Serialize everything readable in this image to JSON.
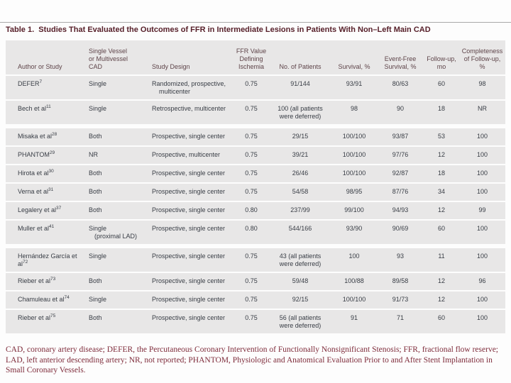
{
  "title": "Table 1.  Studies That Evaluated the Outcomes of FFR in Intermediate Lesions in Patients With Non–Left Main CAD",
  "table": {
    "columns": [
      "Author or Study",
      "Single Vessel\nor Multivessel\nCAD",
      "Study Design",
      "FFR Value\nDefining\nIschemia",
      "No. of Patients",
      "Survival, %",
      "Event-Free\nSurvival, %",
      "Follow-up,\nmo",
      "Completeness\nof Follow-up, %"
    ],
    "rows": [
      {
        "author": "DEFER",
        "sup": "7",
        "cad": "Single",
        "design": "Randomized, prospective,\nmulticenter",
        "ffr": "0.75",
        "patients": "91/144",
        "survival": "93/91",
        "event_free": "80/63",
        "followup": "60",
        "completeness": "98"
      },
      {
        "author": "Bech et al",
        "sup": "11",
        "cad": "Single",
        "design": "Retrospective, multicenter",
        "ffr": "0.75",
        "patients": "100 (all patients\nwere deferred)",
        "survival": "98",
        "event_free": "90",
        "followup": "18",
        "completeness": "NR"
      },
      {
        "author": "Misaka et al",
        "sup": "28",
        "cad": "Both",
        "design": "Prospective, single center",
        "ffr": "0.75",
        "patients": "29/15",
        "survival": "100/100",
        "event_free": "93/87",
        "followup": "53",
        "completeness": "100"
      },
      {
        "author": "PHANTOM",
        "sup": "29",
        "cad": "NR",
        "design": "Prospective, multicenter",
        "ffr": "0.75",
        "patients": "39/21",
        "survival": "100/100",
        "event_free": "97/76",
        "followup": "12",
        "completeness": "100"
      },
      {
        "author": "Hirota et al",
        "sup": "30",
        "cad": "Both",
        "design": "Prospective, single center",
        "ffr": "0.75",
        "patients": "26/46",
        "survival": "100/100",
        "event_free": "92/87",
        "followup": "18",
        "completeness": "100"
      },
      {
        "author": "Verna et al",
        "sup": "31",
        "cad": "Both",
        "design": "Prospective, single center",
        "ffr": "0.75",
        "patients": "54/58",
        "survival": "98/95",
        "event_free": "87/76",
        "followup": "34",
        "completeness": "100"
      },
      {
        "author": "Legalery et al",
        "sup": "37",
        "cad": "Both",
        "design": "Prospective, single center",
        "ffr": "0.80",
        "patients": "237/99",
        "survival": "99/100",
        "event_free": "94/93",
        "followup": "12",
        "completeness": "99"
      },
      {
        "author": "Muller et al",
        "sup": "41",
        "cad": "Single\n(proximal LAD)",
        "design": "Prospective, single center",
        "ffr": "0.80",
        "patients": "544/166",
        "survival": "93/90",
        "event_free": "90/69",
        "followup": "60",
        "completeness": "100"
      },
      {
        "author": "Hernández García et al",
        "sup": "72",
        "cad": "Single",
        "design": "Prospective, single center",
        "ffr": "0.75",
        "patients": "43 (all patients\nwere deferred)",
        "survival": "100",
        "event_free": "93",
        "followup": "11",
        "completeness": "100"
      },
      {
        "author": "Rieber et al",
        "sup": "73",
        "cad": "Both",
        "design": "Prospective, single center",
        "ffr": "0.75",
        "patients": "59/48",
        "survival": "100/88",
        "event_free": "89/58",
        "followup": "12",
        "completeness": "96"
      },
      {
        "author": "Chamuleau et al",
        "sup": "74",
        "cad": "Single",
        "design": "Prospective, single center",
        "ffr": "0.75",
        "patients": "92/15",
        "survival": "100/100",
        "event_free": "91/73",
        "followup": "12",
        "completeness": "100"
      },
      {
        "author": "Rieber et al",
        "sup": "75",
        "cad": "Both",
        "design": "Prospective, single center",
        "ffr": "0.75",
        "patients": "56 (all patients\nwere deferred)",
        "survival": "91",
        "event_free": "71",
        "followup": "60",
        "completeness": "100"
      }
    ],
    "footnote": "CAD, coronary artery disease; DEFER, the Percutaneous Coronary Intervention of Functionally Nonsignificant Stenosis; FFR, fractional flow reserve; LAD, left anterior descending artery; NR, not reported; PHANTOM, Physiologic and Anatomical Evaluation Prior to and After Stent Implantation in Small Coronary Vessels."
  },
  "colors": {
    "title": "#57202a",
    "header-text": "#5e4449",
    "body-text": "#383d45",
    "row-bg": "#e8e7e7",
    "footnote": "#7e2b3a"
  }
}
